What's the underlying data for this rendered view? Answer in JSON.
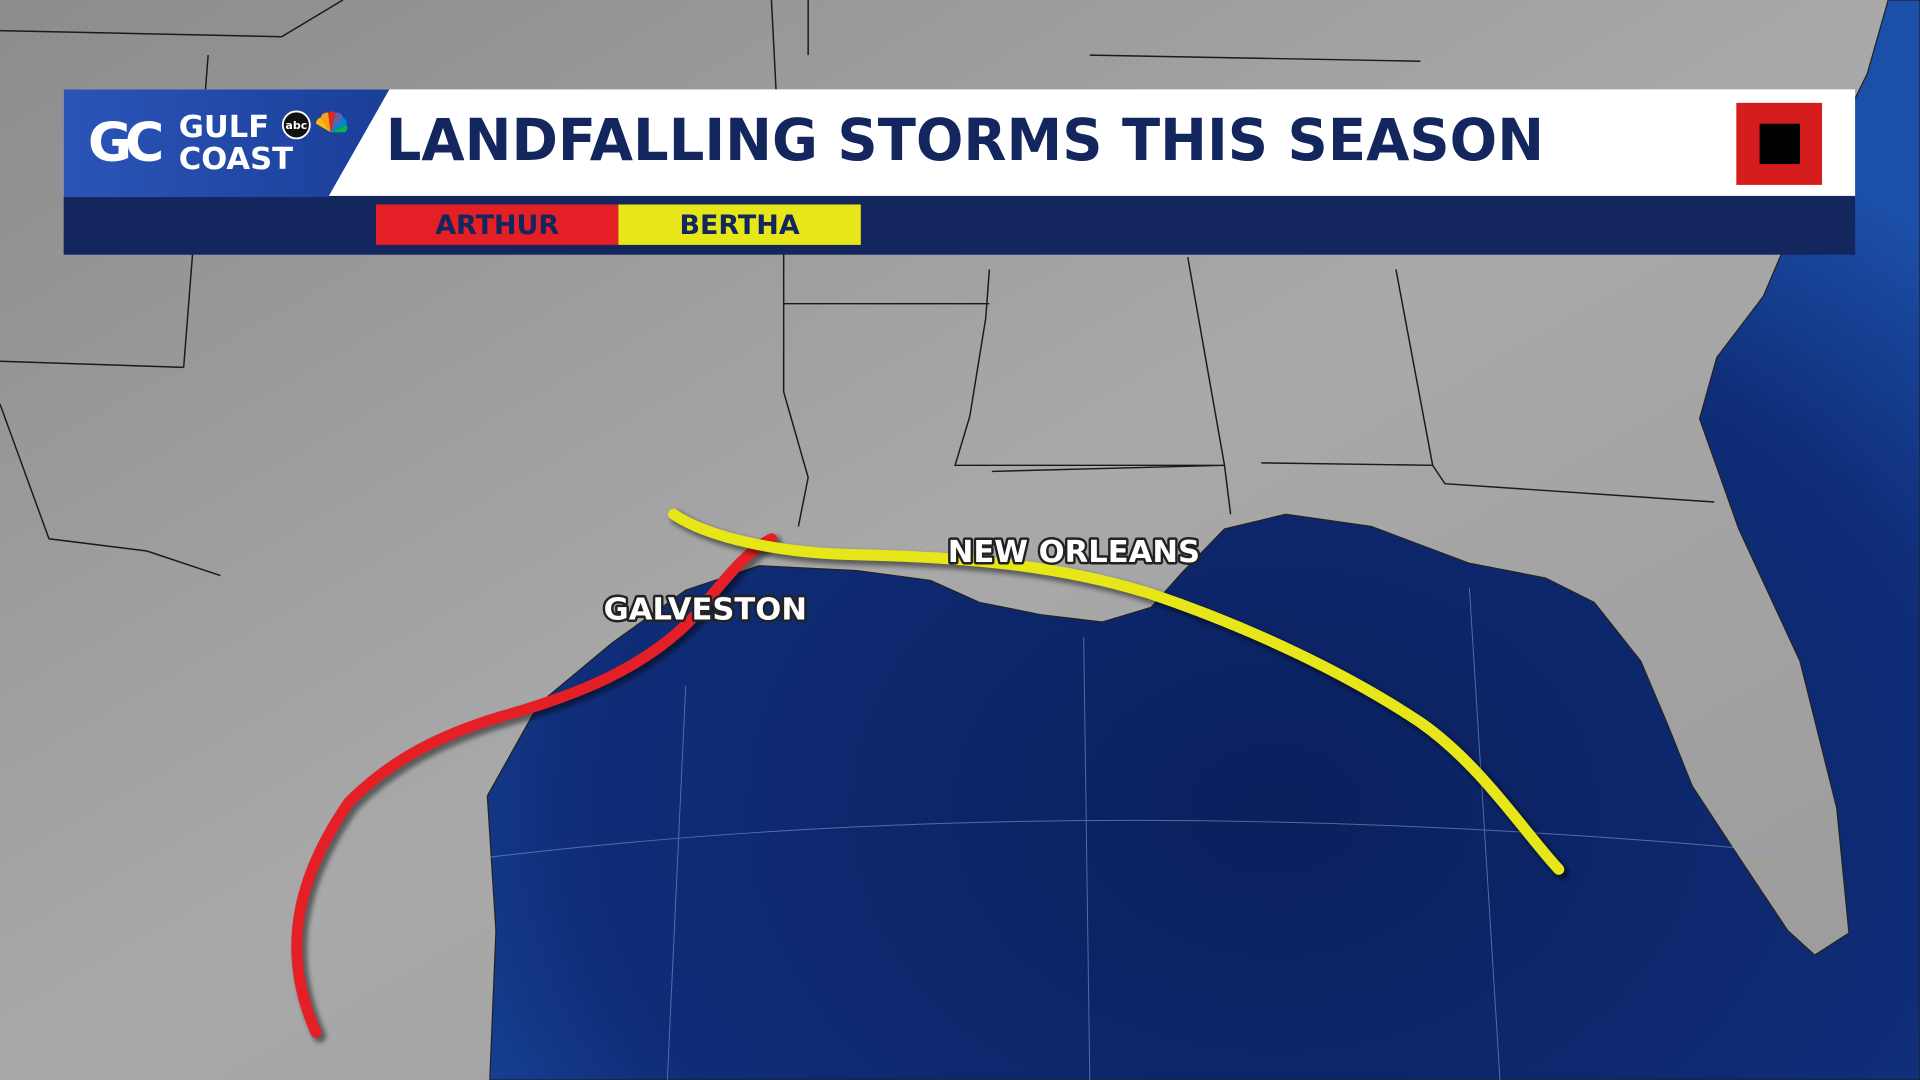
{
  "header": {
    "logo": {
      "initials": "GC",
      "line1": "GULF",
      "line2": "COAST",
      "network": "abc"
    },
    "title": "LANDFALLING STORMS THIS SEASON"
  },
  "legend": [
    {
      "name": "ARTHUR",
      "color": "#e41f26"
    },
    {
      "name": "BERTHA",
      "color": "#e6e618"
    }
  ],
  "labels": [
    "GALVESTON",
    "NEW ORLEANS"
  ]
}
